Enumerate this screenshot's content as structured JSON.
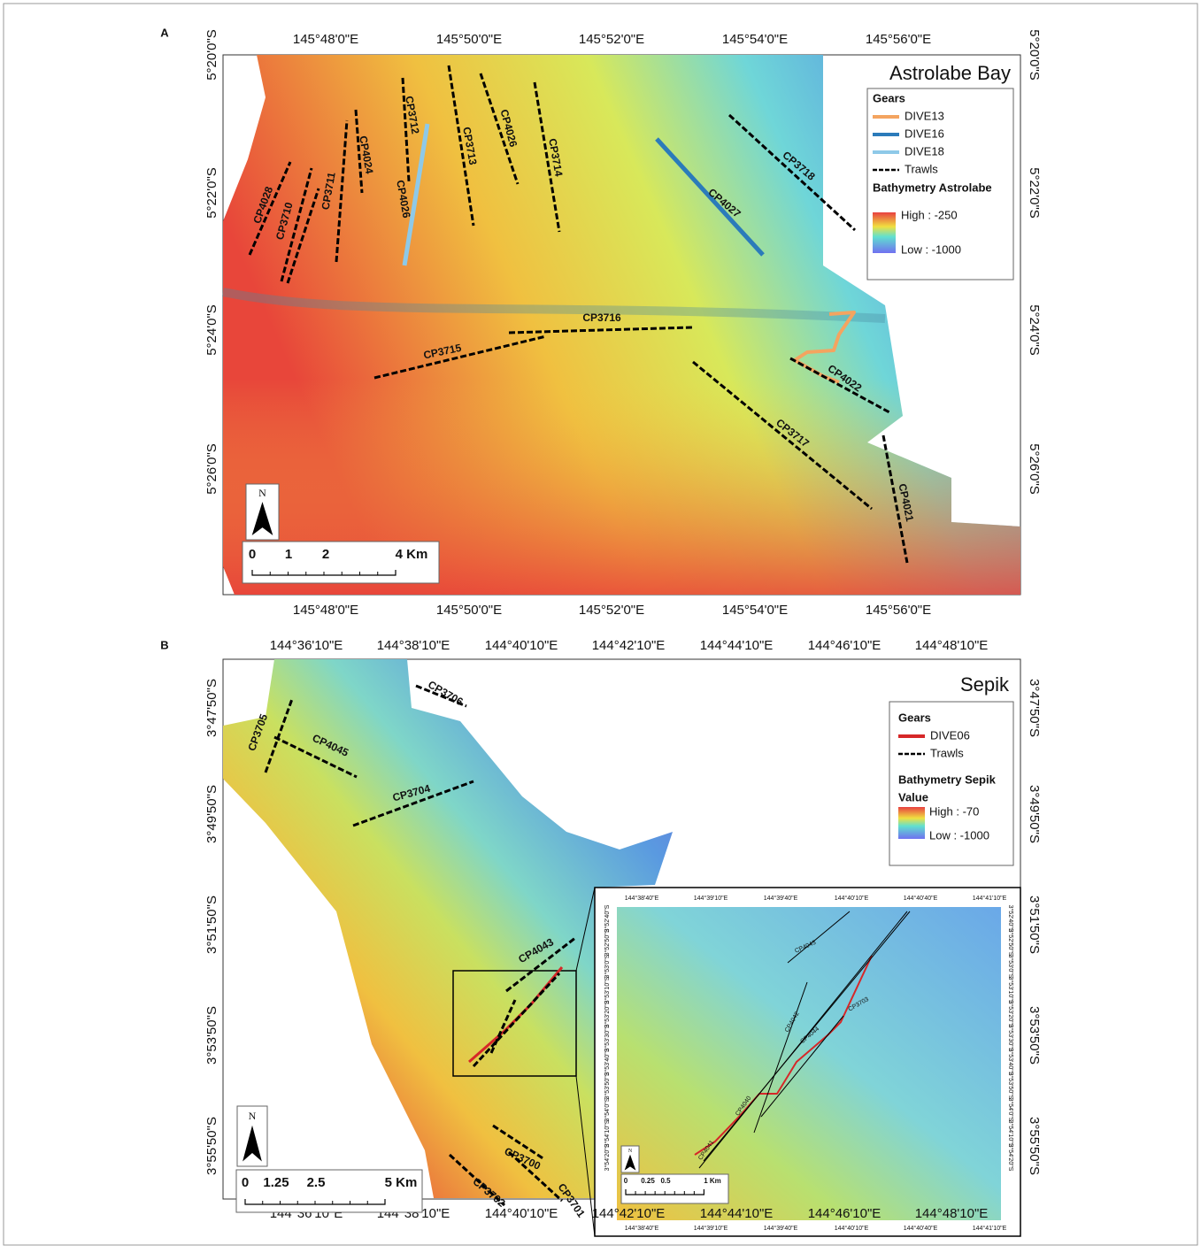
{
  "panel_a": {
    "label": "A",
    "title": "Astrolabe Bay",
    "x_ticks": [
      "145°48'0\"E",
      "145°50'0\"E",
      "145°52'0\"E",
      "145°54'0\"E",
      "145°56'0\"E"
    ],
    "y_ticks": [
      "5°20'0\"S",
      "5°22'0\"S",
      "5°24'0\"S",
      "5°26'0\"S"
    ],
    "legend": {
      "gears_title": "Gears",
      "items": [
        {
          "name": "DIVE13",
          "color": "#f4a460"
        },
        {
          "name": "DIVE16",
          "color": "#2b7bba"
        },
        {
          "name": "DIVE18",
          "color": "#8ec9e8"
        },
        {
          "name": "Trawls",
          "color": "#000000"
        }
      ],
      "bathymetry_title": "Bathymetry Astrolabe",
      "high": "High : -250",
      "low": "Low : -1000"
    },
    "scale": [
      "0",
      "1",
      "2",
      "4 Km"
    ],
    "north": "N",
    "stations": [
      "CP4028",
      "CP3710",
      "CP3711",
      "CP4024",
      "CP4026",
      "CP3712",
      "CP3713",
      "CP4026",
      "CP3714",
      "CP4027",
      "CP3718",
      "CP3716",
      "CP3715",
      "CP4022",
      "CP3717",
      "CP4021"
    ]
  },
  "panel_b": {
    "label": "B",
    "title": "Sepik",
    "x_ticks": [
      "144°36'10\"E",
      "144°38'10\"E",
      "144°40'10\"E",
      "144°42'10\"E",
      "144°44'10\"E",
      "144°46'10\"E",
      "144°48'10\"E"
    ],
    "y_ticks": [
      "3°47'50\"S",
      "3°49'50\"S",
      "3°51'50\"S",
      "3°53'50\"S",
      "3°55'50\"S"
    ],
    "legend": {
      "gears_title": "Gears",
      "items": [
        {
          "name": "DIVE06",
          "color": "#d62728"
        },
        {
          "name": "Trawls",
          "color": "#000000"
        }
      ],
      "bathymetry_title": "Bathymetry Sepik",
      "value_title": "Value",
      "high": "High : -70",
      "low": "Low : -1000"
    },
    "scale": [
      "0",
      "1.25",
      "2.5",
      "5 Km"
    ],
    "north": "N",
    "stations": [
      "CP3706",
      "CP3705",
      "CP4045",
      "CP3704",
      "CP4043",
      "CP3700",
      "CP3702",
      "CP3701"
    ],
    "inset": {
      "x_ticks": [
        "144°38'40\"E",
        "144°39'10\"E",
        "144°39'40\"E",
        "144°40'10\"E",
        "144°40'40\"E",
        "144°41'10\"E"
      ],
      "y_ticks": [
        "3°52'40\"S",
        "3°52'50\"S",
        "3°53'0\"S",
        "3°53'10\"S",
        "3°53'20\"S",
        "3°53'30\"S",
        "3°53'40\"S",
        "3°53'50\"S",
        "3°54'0\"S",
        "3°54'10\"S",
        "3°54'20\"S"
      ],
      "scale": [
        "0",
        "0.25",
        "0.5",
        "1 Km"
      ],
      "north": "N",
      "stations": [
        "CP4043",
        "CP3703",
        "CP4042",
        "CP4044",
        "CP4040",
        "CP4041"
      ]
    }
  }
}
